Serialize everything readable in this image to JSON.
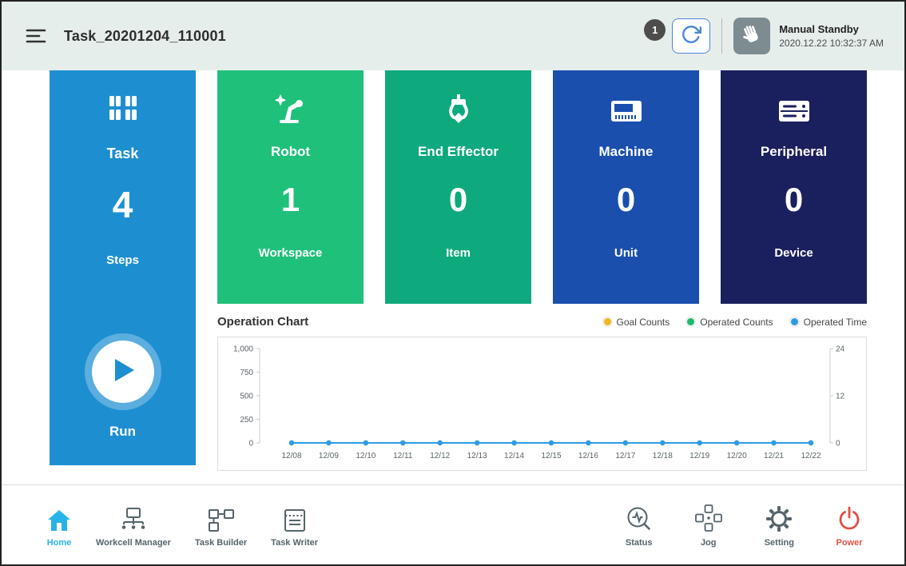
{
  "header": {
    "title": "Task_20201204_110001",
    "badge_count": "1",
    "mode": {
      "label": "Manual Standby",
      "timestamp": "2020.12.22 10:32:37 AM"
    }
  },
  "task_panel": {
    "label": "Task",
    "value": "4",
    "sublabel": "Steps",
    "run_label": "Run",
    "color": "#1d8fd1"
  },
  "cards": [
    {
      "label": "Robot",
      "value": "1",
      "sublabel": "Workspace",
      "color": "#1fc07a",
      "icon": "robot-arm-icon"
    },
    {
      "label": "End Effector",
      "value": "0",
      "sublabel": "Item",
      "color": "#0ea97d",
      "icon": "gripper-icon"
    },
    {
      "label": "Machine",
      "value": "0",
      "sublabel": "Unit",
      "color": "#1a4fae",
      "icon": "machine-icon"
    },
    {
      "label": "Peripheral",
      "value": "0",
      "sublabel": "Device",
      "color": "#1a1f5e",
      "icon": "server-stack-icon"
    }
  ],
  "chart_data": {
    "type": "line",
    "title": "Operation Chart",
    "legend": [
      {
        "label": "Goal Counts",
        "color": "#f0b81c"
      },
      {
        "label": "Operated Counts",
        "color": "#1db96e"
      },
      {
        "label": "Operated Time",
        "color": "#2e9be6"
      }
    ],
    "categories": [
      "12/08",
      "12/09",
      "12/10",
      "12/11",
      "12/12",
      "12/13",
      "12/14",
      "12/15",
      "12/16",
      "12/17",
      "12/18",
      "12/19",
      "12/20",
      "12/21",
      "12/22"
    ],
    "series": [
      {
        "name": "Goal Counts",
        "color": "#f0b81c",
        "axis": "left",
        "values": [
          0,
          0,
          0,
          0,
          0,
          0,
          0,
          0,
          0,
          0,
          0,
          0,
          0,
          0,
          0
        ]
      },
      {
        "name": "Operated Counts",
        "color": "#1db96e",
        "axis": "left",
        "values": [
          0,
          0,
          0,
          0,
          0,
          0,
          0,
          0,
          0,
          0,
          0,
          0,
          0,
          0,
          0
        ]
      },
      {
        "name": "Operated Time",
        "color": "#2e9be6",
        "axis": "right",
        "values": [
          0,
          0,
          0,
          0,
          0,
          0,
          0,
          0,
          0,
          0,
          0,
          0,
          0,
          0,
          0
        ]
      }
    ],
    "left_axis": {
      "max": 1000,
      "ticks": [
        0,
        250,
        500,
        750,
        1000
      ],
      "tick_labels": [
        "0",
        "250",
        "500",
        "750",
        "1,000"
      ]
    },
    "right_axis": {
      "max": 24,
      "ticks": [
        0,
        12,
        24
      ],
      "tick_labels": [
        "0",
        "12",
        "24"
      ]
    }
  },
  "nav": {
    "items": [
      {
        "label": "Home",
        "icon": "home-icon",
        "color": "#27b3e8"
      },
      {
        "label": "Workcell Manager",
        "icon": "workcell-manager-icon"
      },
      {
        "label": "Task Builder",
        "icon": "task-builder-icon"
      },
      {
        "label": "Task Writer",
        "icon": "task-writer-icon"
      },
      {
        "label": "Status",
        "icon": "status-icon"
      },
      {
        "label": "Jog",
        "icon": "jog-icon"
      },
      {
        "label": "Setting",
        "icon": "setting-icon"
      },
      {
        "label": "Power",
        "icon": "power-icon",
        "color": "#e05045"
      }
    ]
  }
}
